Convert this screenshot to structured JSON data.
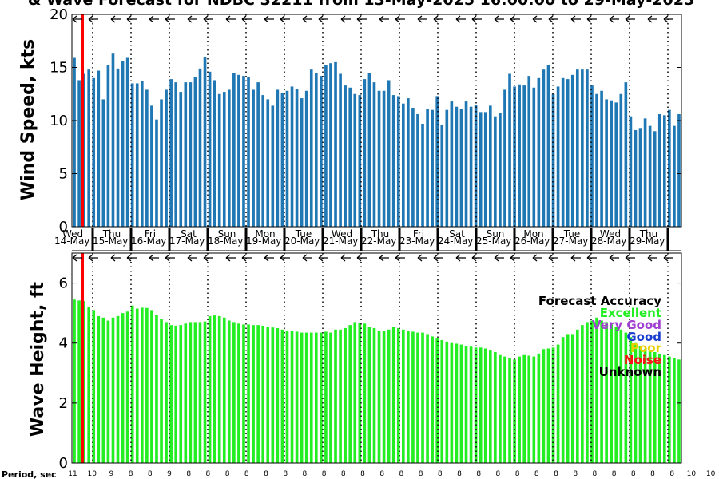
{
  "chart_data": [
    {
      "type": "bar",
      "title": "& Wave Forecast for NDBC 32211 from 13-May-2025 16:00:00 to 29-May-2025",
      "ylabel": "Wind Speed, kts",
      "ylim": [
        0,
        20
      ],
      "yticks": [
        "0",
        "5",
        "10",
        "15",
        "20"
      ],
      "bar_color": "#1f77b4",
      "values": [
        15.9,
        13.8,
        14.4,
        14.8,
        14.0,
        14.7,
        12.0,
        15.2,
        16.3,
        14.9,
        15.6,
        15.9,
        13.5,
        13.5,
        13.7,
        12.9,
        11.4,
        10.1,
        12.0,
        12.9,
        13.9,
        13.6,
        12.7,
        13.6,
        13.6,
        14.1,
        14.9,
        16.0,
        14.6,
        13.8,
        12.5,
        12.7,
        12.9,
        14.5,
        14.3,
        14.2,
        14.1,
        12.9,
        13.6,
        12.4,
        12.0,
        11.4,
        12.9,
        12.6,
        12.8,
        13.2,
        13.0,
        12.1,
        12.8,
        14.8,
        14.5,
        14.2,
        15.2,
        15.4,
        15.5,
        14.4,
        13.3,
        13.1,
        12.5,
        12.4,
        13.9,
        14.5,
        13.6,
        12.8,
        12.8,
        13.8,
        12.4,
        12.3,
        11.6,
        12.1,
        11.2,
        10.6,
        9.7,
        11.1,
        11.0,
        12.3,
        9.6,
        11.0,
        11.8,
        11.3,
        11.1,
        11.8,
        11.3,
        11.5,
        10.8,
        10.8,
        11.4,
        10.4,
        10.7,
        12.9,
        14.4,
        13.2,
        13.4,
        13.3,
        14.2,
        13.1,
        14.0,
        14.8,
        15.2,
        12.5,
        13.2,
        14.0,
        13.9,
        14.3,
        14.8,
        14.8,
        14.8,
        13.3,
        12.5,
        12.8,
        12.0,
        11.9,
        11.7,
        12.5,
        13.6,
        10.4,
        9.1,
        9.3,
        10.2,
        9.5,
        9.0,
        10.6,
        10.5,
        11.0,
        9.5,
        10.6
      ],
      "direction_arrows": 16
    },
    {
      "type": "bar",
      "ylabel": "Wave Height, ft",
      "ylim": [
        0,
        7
      ],
      "yticks": [
        "0",
        "2",
        "4",
        "6"
      ],
      "bar_color": "#22ee22",
      "values": [
        5.45,
        5.42,
        5.4,
        5.2,
        5.1,
        4.9,
        4.85,
        4.75,
        4.85,
        4.9,
        5.0,
        5.05,
        5.25,
        5.15,
        5.18,
        5.17,
        5.1,
        4.95,
        4.8,
        4.7,
        4.6,
        4.58,
        4.6,
        4.65,
        4.7,
        4.7,
        4.7,
        4.72,
        4.9,
        4.92,
        4.9,
        4.85,
        4.75,
        4.7,
        4.65,
        4.62,
        4.62,
        4.6,
        4.6,
        4.58,
        4.55,
        4.52,
        4.5,
        4.45,
        4.42,
        4.4,
        4.38,
        4.35,
        4.35,
        4.35,
        4.35,
        4.35,
        4.38,
        4.35,
        4.45,
        4.45,
        4.5,
        4.6,
        4.7,
        4.68,
        4.65,
        4.55,
        4.5,
        4.42,
        4.4,
        4.45,
        4.55,
        4.5,
        4.45,
        4.4,
        4.38,
        4.35,
        4.35,
        4.3,
        4.22,
        4.15,
        4.1,
        4.05,
        4.0,
        3.98,
        3.95,
        3.9,
        3.88,
        3.85,
        3.85,
        3.82,
        3.75,
        3.7,
        3.6,
        3.55,
        3.5,
        3.45,
        3.55,
        3.6,
        3.58,
        3.55,
        3.65,
        3.8,
        3.82,
        3.85,
        3.95,
        4.2,
        4.3,
        4.3,
        4.45,
        4.6,
        4.7,
        4.75,
        4.85,
        4.75,
        4.7,
        4.62,
        4.55,
        4.45,
        4.35,
        4.2,
        4.0,
        3.9,
        3.8,
        3.75,
        3.7,
        3.65,
        3.6,
        3.55,
        3.5,
        3.45
      ],
      "direction_arrows": 16
    }
  ],
  "day_labels": [
    {
      "dow": "Wed",
      "date": "14-May"
    },
    {
      "dow": "Thu",
      "date": "15-May"
    },
    {
      "dow": "Fri",
      "date": "16-May"
    },
    {
      "dow": "Sat",
      "date": "17-May"
    },
    {
      "dow": "Sun",
      "date": "18-May"
    },
    {
      "dow": "Mon",
      "date": "19-May"
    },
    {
      "dow": "Tue",
      "date": "20-May"
    },
    {
      "dow": "Wed",
      "date": "21-May"
    },
    {
      "dow": "Thu",
      "date": "22-May"
    },
    {
      "dow": "Fri",
      "date": "23-May"
    },
    {
      "dow": "Sat",
      "date": "24-May"
    },
    {
      "dow": "Sun",
      "date": "25-May"
    },
    {
      "dow": "Mon",
      "date": "26-May"
    },
    {
      "dow": "Tue",
      "date": "27-May"
    },
    {
      "dow": "Wed",
      "date": "28-May"
    },
    {
      "dow": "Thu",
      "date": "29-May"
    }
  ],
  "period": {
    "label": "Period, sec",
    "values": [
      "11",
      "10",
      "9",
      "8",
      "8",
      "9",
      "8",
      "8",
      "8",
      "8",
      "8",
      "8",
      "8",
      "8",
      "8",
      "8",
      "8",
      "8",
      "8",
      "8",
      "8",
      "8",
      "8",
      "8",
      "8",
      "8",
      "8",
      "8",
      "8",
      "8",
      "8",
      "8",
      "10",
      "10",
      "9"
    ]
  },
  "legend": {
    "title": "Forecast Accuracy",
    "items": [
      {
        "label": "Excellent",
        "color": "#22ee22"
      },
      {
        "label": "Very Good",
        "color": "#a040d0"
      },
      {
        "label": "Good",
        "color": "#1a3fd0"
      },
      {
        "label": "Poor",
        "color": "#e8d000"
      },
      {
        "label": "Noise",
        "color": "#ff1010"
      },
      {
        "label": "Unknown",
        "color": "#000000"
      }
    ]
  },
  "colors": {
    "current_time_line": "#ff0000",
    "day_divider": "#000000"
  }
}
